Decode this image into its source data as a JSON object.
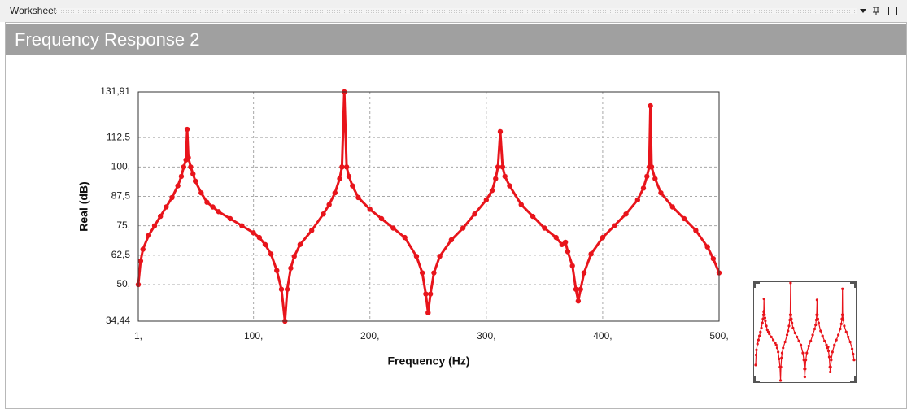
{
  "window_title": "Worksheet",
  "panel_title": "Frequency Response 2",
  "chart_data": {
    "type": "line",
    "xlabel": "Frequency (Hz)",
    "ylabel": "Real (dB)",
    "xlim": [
      1,
      500
    ],
    "ylim": [
      34.44,
      131.91
    ],
    "xticks": [
      {
        "value": 1,
        "label": "1,"
      },
      {
        "value": 100,
        "label": "100,"
      },
      {
        "value": 200,
        "label": "200,"
      },
      {
        "value": 300,
        "label": "300,"
      },
      {
        "value": 400,
        "label": "400,"
      },
      {
        "value": 500,
        "label": "500,"
      }
    ],
    "yticks": [
      {
        "value": 34.44,
        "label": "34,44"
      },
      {
        "value": 50,
        "label": "50,"
      },
      {
        "value": 62.5,
        "label": "62,5"
      },
      {
        "value": 75,
        "label": "75,"
      },
      {
        "value": 87.5,
        "label": "87,5"
      },
      {
        "value": 100,
        "label": "100,"
      },
      {
        "value": 112.5,
        "label": "112,5"
      },
      {
        "value": 131.91,
        "label": "131,91"
      }
    ],
    "grid": true,
    "x": [
      1,
      3,
      5,
      10,
      15,
      20,
      25,
      30,
      35,
      38,
      40,
      42,
      43,
      44,
      46,
      48,
      50,
      55,
      60,
      65,
      70,
      80,
      90,
      100,
      105,
      110,
      115,
      120,
      124,
      127,
      129,
      132,
      135,
      140,
      150,
      160,
      165,
      170,
      174,
      176,
      178,
      180,
      182,
      185,
      190,
      200,
      210,
      220,
      230,
      240,
      245,
      248,
      250,
      252,
      255,
      260,
      270,
      280,
      290,
      300,
      305,
      308,
      310,
      312,
      314,
      316,
      320,
      330,
      340,
      350,
      360,
      365,
      368,
      370,
      374,
      377,
      379,
      381,
      384,
      390,
      400,
      410,
      420,
      430,
      435,
      438,
      440,
      441,
      442,
      445,
      450,
      460,
      470,
      480,
      490,
      495,
      500
    ],
    "series": [
      {
        "color": "#e8141b",
        "values": [
          50,
          60,
          65,
          71,
          75,
          79,
          83,
          87,
          92,
          96,
          100,
          103,
          116,
          104,
          100,
          97,
          94,
          89,
          85,
          83,
          81,
          78,
          75,
          72,
          70,
          67,
          63,
          56,
          48,
          34.44,
          48,
          57,
          62,
          67,
          73,
          80,
          84,
          89,
          95,
          100,
          131.91,
          100,
          96,
          92,
          87,
          82,
          78,
          74,
          70,
          62,
          55,
          46,
          38,
          46,
          55,
          62,
          69,
          74,
          80,
          86,
          90,
          95,
          100,
          115,
          100,
          96,
          92,
          84,
          79,
          74,
          70,
          67,
          68,
          64,
          58,
          48,
          43,
          48,
          55,
          63,
          70,
          75,
          80,
          86,
          91,
          96,
          100,
          126,
          100,
          95,
          89,
          83,
          78,
          73,
          66,
          61,
          55
        ]
      }
    ]
  }
}
